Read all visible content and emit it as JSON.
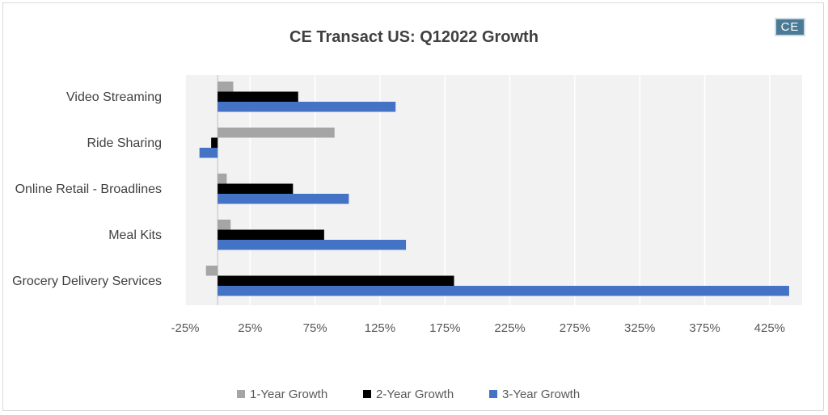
{
  "title": "CE Transact US: Q12022 Growth",
  "logo_text": "CE",
  "chart_data": {
    "type": "bar",
    "orientation": "horizontal",
    "title": "CE Transact US: Q12022 Growth",
    "categories": [
      "Video Streaming",
      "Ride Sharing",
      "Online Retail - Broadlines",
      "Meal Kits",
      "Grocery Delivery Services"
    ],
    "series": [
      {
        "name": "1-Year Growth",
        "color": "#a5a5a5",
        "values": [
          12,
          90,
          7,
          10,
          -9
        ]
      },
      {
        "name": "2-Year Growth",
        "color": "#000000",
        "values": [
          62,
          -5,
          58,
          82,
          182
        ]
      },
      {
        "name": "3-Year Growth",
        "color": "#4472c4",
        "values": [
          137,
          -14,
          101,
          145,
          440
        ]
      }
    ],
    "xlim": [
      -25,
      450
    ],
    "xticks": [
      -25,
      25,
      75,
      125,
      175,
      225,
      275,
      325,
      375,
      425
    ],
    "xtick_labels": [
      "-25%",
      "25%",
      "75%",
      "125%",
      "175%",
      "225%",
      "275%",
      "325%",
      "375%",
      "425%"
    ],
    "grid": true,
    "legend": "bottom"
  }
}
